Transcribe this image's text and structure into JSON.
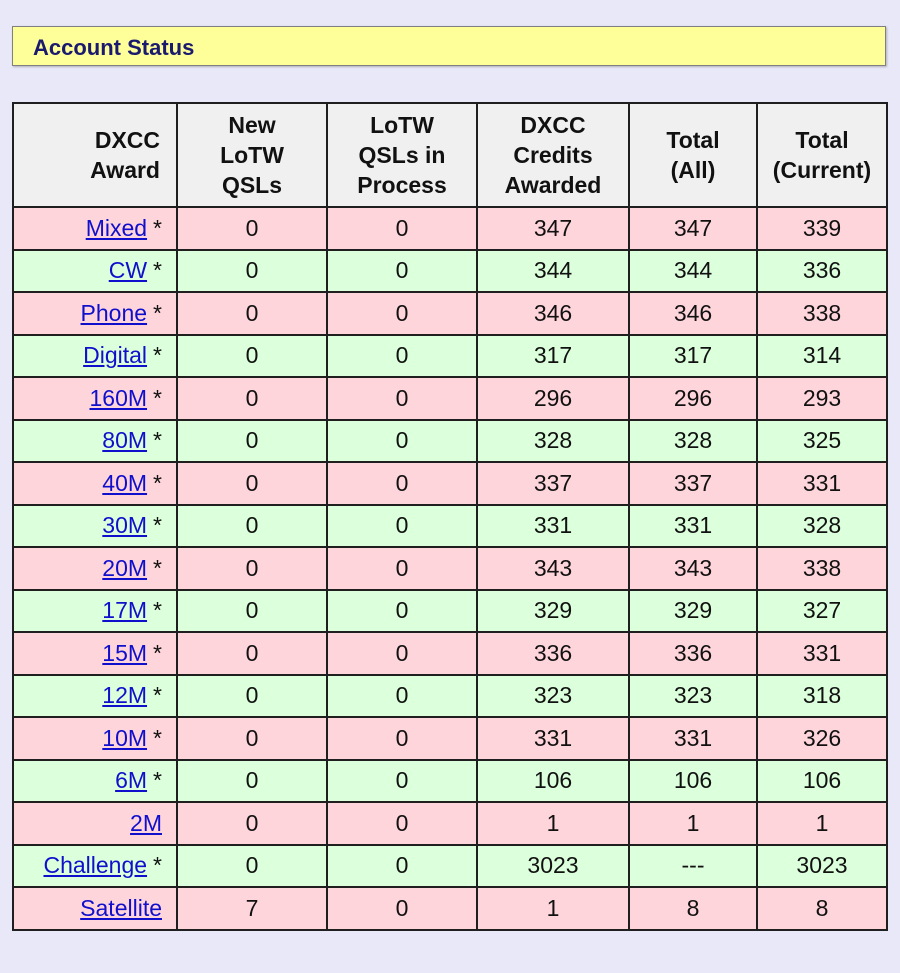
{
  "status_bar": {
    "title": "Account Status"
  },
  "table": {
    "headers": {
      "award": "DXCC\nAward",
      "new_lotw": "New\nLoTW\nQSLs",
      "in_process": "LoTW\nQSLs in\nProcess",
      "credits": "DXCC\nCredits\nAwarded",
      "total_all": "Total\n(All)",
      "total_current": "Total\n(Current)"
    },
    "rows": [
      {
        "award": "Mixed",
        "star": "*",
        "new": "0",
        "process": "0",
        "credits": "347",
        "all": "347",
        "current": "339"
      },
      {
        "award": "CW",
        "star": "*",
        "new": "0",
        "process": "0",
        "credits": "344",
        "all": "344",
        "current": "336"
      },
      {
        "award": "Phone",
        "star": "*",
        "new": "0",
        "process": "0",
        "credits": "346",
        "all": "346",
        "current": "338"
      },
      {
        "award": "Digital",
        "star": "*",
        "new": "0",
        "process": "0",
        "credits": "317",
        "all": "317",
        "current": "314"
      },
      {
        "award": "160M",
        "star": "*",
        "new": "0",
        "process": "0",
        "credits": "296",
        "all": "296",
        "current": "293"
      },
      {
        "award": "80M",
        "star": "*",
        "new": "0",
        "process": "0",
        "credits": "328",
        "all": "328",
        "current": "325"
      },
      {
        "award": "40M",
        "star": "*",
        "new": "0",
        "process": "0",
        "credits": "337",
        "all": "337",
        "current": "331"
      },
      {
        "award": "30M",
        "star": "*",
        "new": "0",
        "process": "0",
        "credits": "331",
        "all": "331",
        "current": "328"
      },
      {
        "award": "20M",
        "star": "*",
        "new": "0",
        "process": "0",
        "credits": "343",
        "all": "343",
        "current": "338"
      },
      {
        "award": "17M",
        "star": "*",
        "new": "0",
        "process": "0",
        "credits": "329",
        "all": "329",
        "current": "327"
      },
      {
        "award": "15M",
        "star": "*",
        "new": "0",
        "process": "0",
        "credits": "336",
        "all": "336",
        "current": "331"
      },
      {
        "award": "12M",
        "star": "*",
        "new": "0",
        "process": "0",
        "credits": "323",
        "all": "323",
        "current": "318"
      },
      {
        "award": "10M",
        "star": "*",
        "new": "0",
        "process": "0",
        "credits": "331",
        "all": "331",
        "current": "326"
      },
      {
        "award": "6M",
        "star": "*",
        "new": "0",
        "process": "0",
        "credits": "106",
        "all": "106",
        "current": "106"
      },
      {
        "award": "2M",
        "star": "",
        "new": "0",
        "process": "0",
        "credits": "1",
        "all": "1",
        "current": "1"
      },
      {
        "award": "Challenge",
        "star": "*",
        "new": "0",
        "process": "0",
        "credits": "3023",
        "all": "---",
        "current": "3023"
      },
      {
        "award": "Satellite",
        "star": "",
        "new": "7",
        "process": "0",
        "credits": "1",
        "all": "8",
        "current": "8"
      }
    ]
  },
  "colors": {
    "pink_row": "#ffd5dc",
    "green_row": "#dcffdc",
    "status_bg": "#ffff99",
    "title": "#1a1a6e",
    "link": "#1010cc"
  }
}
